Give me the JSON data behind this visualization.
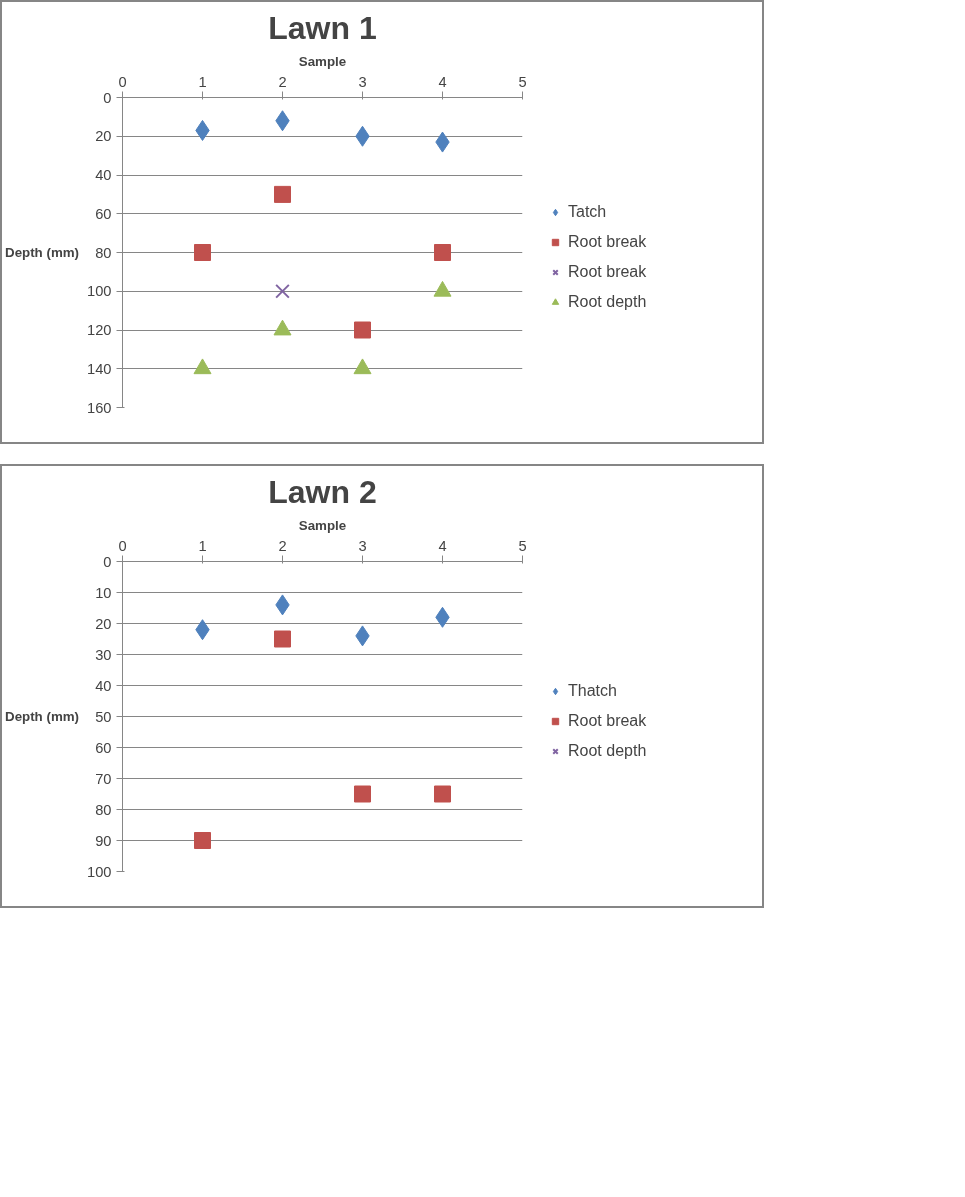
{
  "chart_data": [
    {
      "type": "scatter",
      "title": "Lawn 1",
      "xlabel": "Sample",
      "ylabel": "Depth (mm)",
      "x": [
        1,
        2,
        3,
        4
      ],
      "xlim": [
        0,
        5
      ],
      "xticks": [
        0,
        1,
        2,
        3,
        4,
        5
      ],
      "ylim": [
        160,
        0
      ],
      "yticks": [
        0,
        20,
        40,
        60,
        80,
        100,
        120,
        140,
        160
      ],
      "grid": "y",
      "legend": "right",
      "series": [
        {
          "name": "Tatch",
          "color": "#4f81bd",
          "marker": "diamond",
          "values": [
            17,
            12,
            20,
            23
          ]
        },
        {
          "name": "Root break",
          "color": "#c0504d",
          "marker": "square",
          "values": [
            80,
            50,
            120,
            80
          ]
        },
        {
          "name": "Root break",
          "color": "#8064a2",
          "marker": "cross",
          "values": [
            null,
            100,
            null,
            null
          ]
        },
        {
          "name": "Root depth",
          "color": "#9bbb59",
          "marker": "triangle",
          "values": [
            140,
            120,
            140,
            100
          ]
        }
      ]
    },
    {
      "type": "scatter",
      "title": "Lawn 2",
      "xlabel": "Sample",
      "ylabel": "Depth (mm)",
      "x": [
        1,
        2,
        3,
        4
      ],
      "xlim": [
        0,
        5
      ],
      "xticks": [
        0,
        1,
        2,
        3,
        4,
        5
      ],
      "ylim": [
        100,
        0
      ],
      "yticks": [
        0,
        10,
        20,
        30,
        40,
        50,
        60,
        70,
        80,
        90,
        100
      ],
      "grid": "y",
      "legend": "right",
      "series": [
        {
          "name": "Thatch",
          "color": "#4f81bd",
          "marker": "diamond",
          "values": [
            22,
            14,
            24,
            18
          ]
        },
        {
          "name": "Root break",
          "color": "#c0504d",
          "marker": "square",
          "values": [
            90,
            25,
            75,
            75
          ]
        },
        {
          "name": "Root depth",
          "color": "#8064a2",
          "marker": "cross",
          "values": [
            null,
            null,
            null,
            null
          ]
        }
      ]
    }
  ]
}
